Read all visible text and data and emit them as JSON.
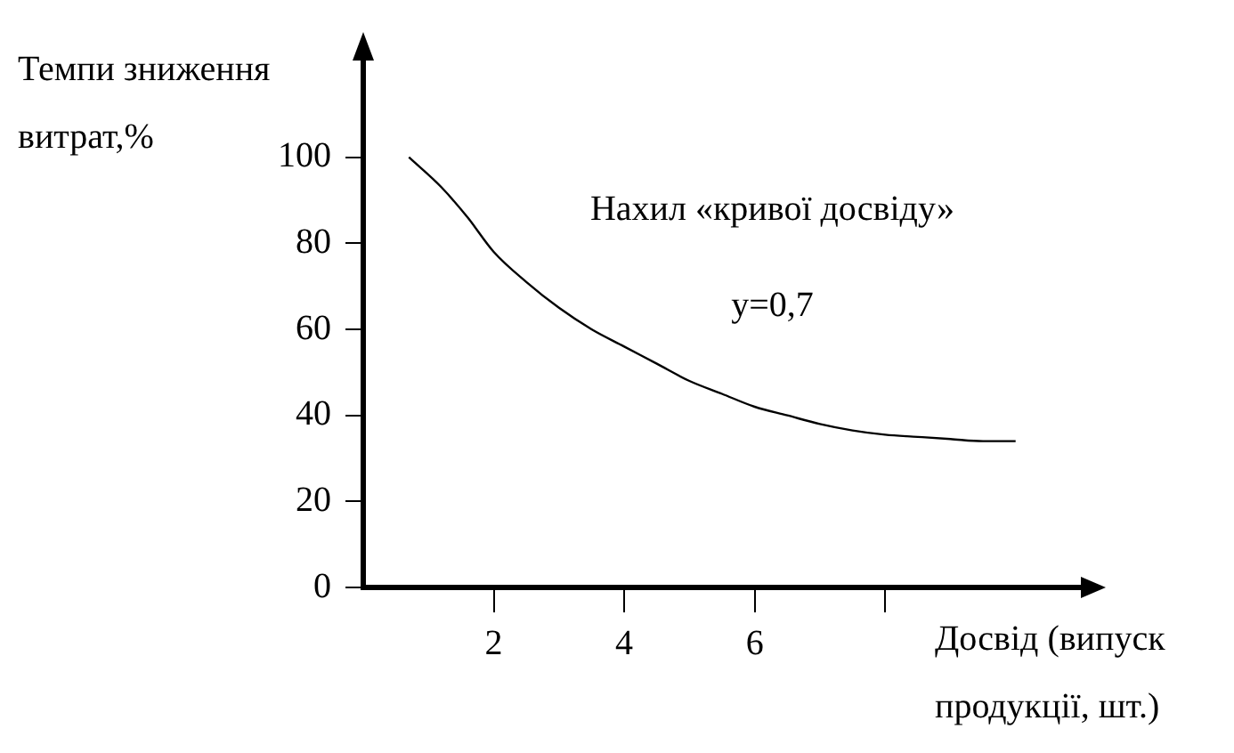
{
  "chart_data": {
    "type": "line",
    "xlabel": "Досвід (випуск продукції, шт.)",
    "ylabel": "Темпи зниження витрат,%",
    "annotations": [
      "Нахил «кривої досвіду»",
      "y=0,7"
    ],
    "x": [
      0.7,
      1.2,
      1.6,
      2,
      2.5,
      3,
      3.5,
      4,
      4.5,
      5,
      5.5,
      6,
      6.5,
      7,
      7.5,
      8,
      8.5,
      9,
      9.5,
      10
    ],
    "series": [
      {
        "color": "#000000",
        "values": [
          100,
          93,
          86,
          78,
          71,
          65,
          60,
          56,
          52,
          48,
          45,
          42,
          40,
          38,
          36.5,
          35.5,
          35,
          34.5,
          34,
          34
        ]
      }
    ],
    "xlim": [
      0,
      11
    ],
    "ylim": [
      0,
      120
    ],
    "xticks": [
      {
        "value": 2,
        "label": "2"
      },
      {
        "value": 4,
        "label": "4"
      },
      {
        "value": 6,
        "label": "6"
      },
      {
        "value": 8,
        "label": null
      }
    ],
    "yticks": [
      {
        "value": 0,
        "label": "0"
      },
      20,
      40,
      60,
      80,
      100
    ],
    "grid": false,
    "legend": false,
    "marker": "none",
    "line_style": "solid"
  }
}
